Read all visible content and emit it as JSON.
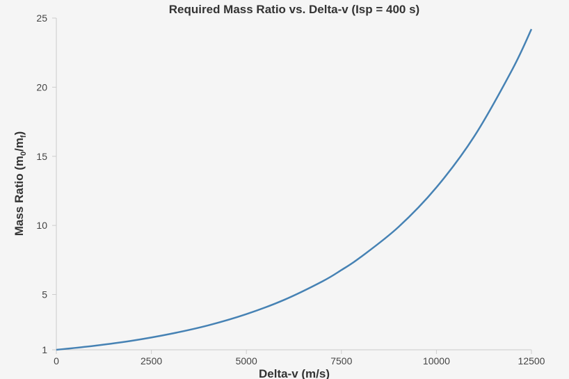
{
  "chart_data": {
    "type": "line",
    "title": "Required Mass Ratio vs. Delta-v (Isp = 400 s)",
    "xlabel": "Delta-v (m/s)",
    "ylabel": {
      "prefix": "Mass Ratio (m",
      "sub1": "0",
      "middle": "/m",
      "sub2": "f",
      "suffix": ")"
    },
    "xlim": [
      0,
      12500
    ],
    "ylim": [
      1,
      25
    ],
    "x_ticks": [
      0,
      2500,
      5000,
      7500,
      10000,
      12500
    ],
    "y_ticks": [
      1,
      5,
      10,
      15,
      20,
      25
    ],
    "grid": false,
    "series": [
      {
        "color": "#4682b4",
        "x": [
          0,
          1000,
          2000,
          3000,
          4000,
          5000,
          6000,
          7000,
          7500,
          8000,
          9000,
          10000,
          11000,
          12000,
          12500
        ],
        "y": [
          1.0,
          1.29,
          1.66,
          2.15,
          2.77,
          3.58,
          4.62,
          5.95,
          6.77,
          7.69,
          9.88,
          12.75,
          16.46,
          21.3,
          24.2
        ]
      }
    ]
  }
}
